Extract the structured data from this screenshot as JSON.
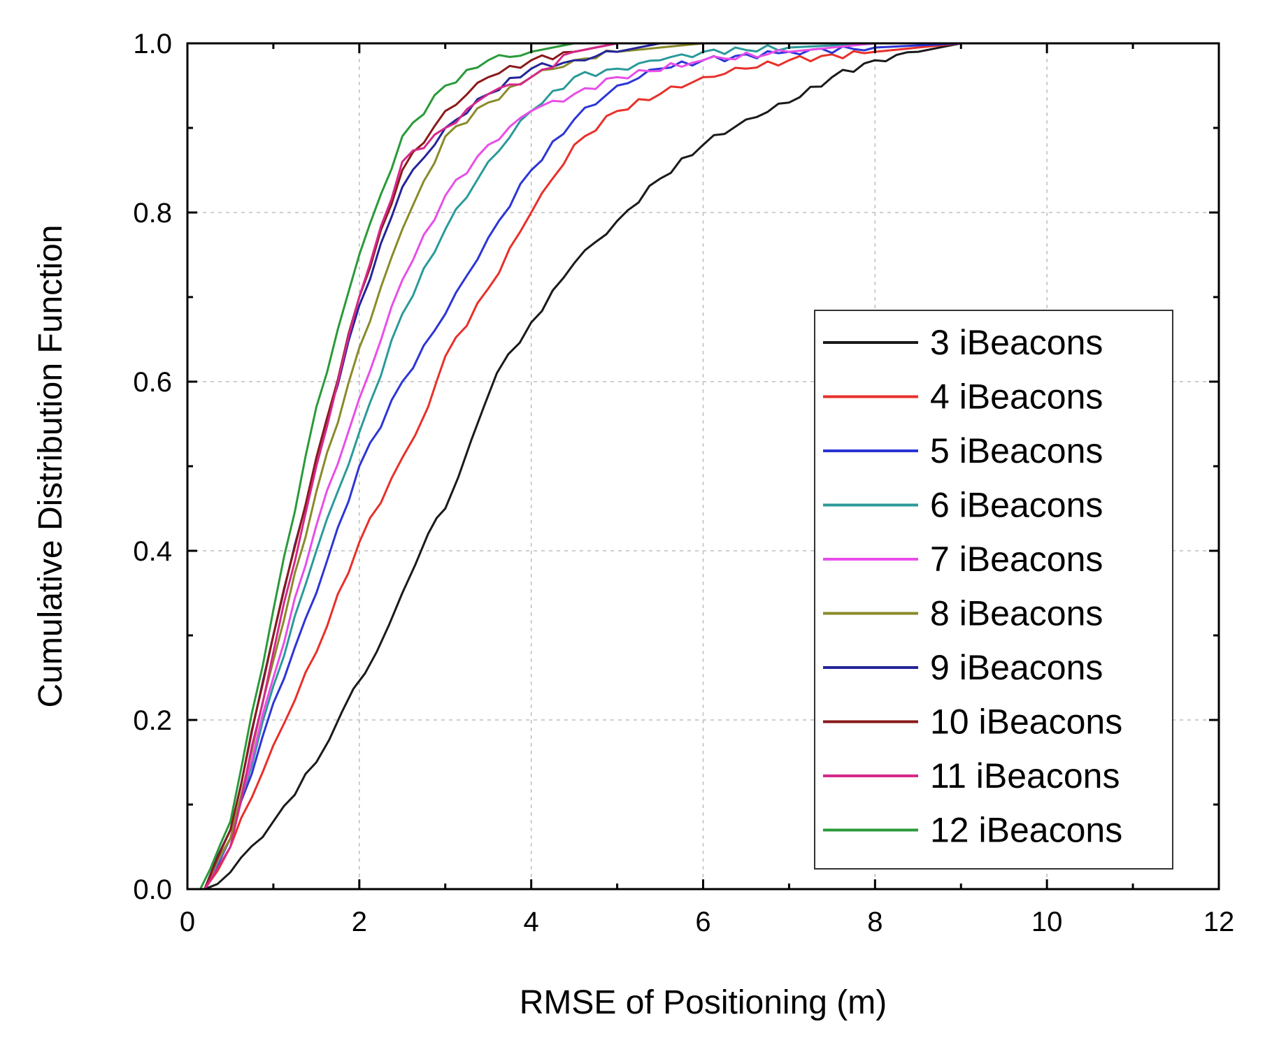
{
  "chart_data": {
    "type": "line",
    "title": "",
    "xlabel": "RMSE of Positioning (m)",
    "ylabel": "Cumulative Distribution Function",
    "xlim": [
      0,
      12
    ],
    "ylim": [
      0,
      1.0
    ],
    "xticks": [
      0,
      2,
      4,
      6,
      8,
      10,
      12
    ],
    "xtick_labels": [
      "0",
      "2",
      "4",
      "6",
      "8",
      "10",
      "12"
    ],
    "yticks": [
      0.0,
      0.2,
      0.4,
      0.6,
      0.8,
      1.0
    ],
    "ytick_labels": [
      "0.0",
      "0.2",
      "0.4",
      "0.6",
      "0.8",
      "1.0"
    ],
    "grid": true,
    "legend_position": "bottom-right",
    "series": [
      {
        "name": "3 iBeacons",
        "color": "#1a1a1a",
        "points": [
          [
            0.2,
            0
          ],
          [
            0.5,
            0.02
          ],
          [
            1.0,
            0.08
          ],
          [
            1.5,
            0.15
          ],
          [
            1.8,
            0.21
          ],
          [
            2.2,
            0.28
          ],
          [
            2.5,
            0.35
          ],
          [
            2.8,
            0.42
          ],
          [
            3.0,
            0.45
          ],
          [
            3.3,
            0.53
          ],
          [
            3.6,
            0.61
          ],
          [
            4.0,
            0.67
          ],
          [
            4.5,
            0.74
          ],
          [
            5.0,
            0.79
          ],
          [
            5.5,
            0.84
          ],
          [
            6.0,
            0.88
          ],
          [
            6.5,
            0.91
          ],
          [
            7.0,
            0.93
          ],
          [
            7.5,
            0.96
          ],
          [
            8.0,
            0.98
          ],
          [
            8.5,
            0.99
          ],
          [
            9.0,
            1.0
          ],
          [
            12.0,
            1.0
          ]
        ]
      },
      {
        "name": "4 iBeacons",
        "color": "#e8302a",
        "points": [
          [
            0.2,
            0
          ],
          [
            0.5,
            0.05
          ],
          [
            1.0,
            0.17
          ],
          [
            1.5,
            0.28
          ],
          [
            2.0,
            0.41
          ],
          [
            2.5,
            0.51
          ],
          [
            2.8,
            0.57
          ],
          [
            3.0,
            0.63
          ],
          [
            3.5,
            0.71
          ],
          [
            4.0,
            0.8
          ],
          [
            4.5,
            0.88
          ],
          [
            5.0,
            0.92
          ],
          [
            5.5,
            0.94
          ],
          [
            6.0,
            0.96
          ],
          [
            6.5,
            0.97
          ],
          [
            7.0,
            0.98
          ],
          [
            8.0,
            0.99
          ],
          [
            9.0,
            1.0
          ],
          [
            12.0,
            1.0
          ]
        ]
      },
      {
        "name": "5 iBeacons",
        "color": "#2c35d6",
        "points": [
          [
            0.2,
            0
          ],
          [
            0.5,
            0.06
          ],
          [
            1.0,
            0.22
          ],
          [
            1.5,
            0.35
          ],
          [
            2.0,
            0.5
          ],
          [
            2.5,
            0.6
          ],
          [
            3.0,
            0.68
          ],
          [
            3.5,
            0.77
          ],
          [
            4.0,
            0.85
          ],
          [
            4.5,
            0.91
          ],
          [
            5.0,
            0.95
          ],
          [
            5.5,
            0.97
          ],
          [
            6.0,
            0.98
          ],
          [
            7.0,
            0.99
          ],
          [
            8.0,
            0.995
          ],
          [
            9.0,
            1.0
          ],
          [
            12.0,
            1.0
          ]
        ]
      },
      {
        "name": "6 iBeacons",
        "color": "#2a9a9a",
        "points": [
          [
            0.2,
            0
          ],
          [
            0.5,
            0.06
          ],
          [
            1.0,
            0.24
          ],
          [
            1.5,
            0.4
          ],
          [
            2.0,
            0.54
          ],
          [
            2.5,
            0.68
          ],
          [
            3.0,
            0.78
          ],
          [
            3.5,
            0.86
          ],
          [
            4.0,
            0.92
          ],
          [
            4.5,
            0.96
          ],
          [
            5.0,
            0.97
          ],
          [
            5.5,
            0.98
          ],
          [
            6.0,
            0.99
          ],
          [
            7.0,
            0.995
          ],
          [
            8.0,
            1.0
          ],
          [
            12.0,
            1.0
          ]
        ]
      },
      {
        "name": "7 iBeacons",
        "color": "#e84ee8",
        "points": [
          [
            0.2,
            0
          ],
          [
            0.5,
            0.06
          ],
          [
            1.0,
            0.25
          ],
          [
            1.5,
            0.43
          ],
          [
            2.0,
            0.58
          ],
          [
            2.5,
            0.72
          ],
          [
            3.0,
            0.82
          ],
          [
            3.5,
            0.88
          ],
          [
            4.0,
            0.92
          ],
          [
            4.5,
            0.94
          ],
          [
            5.0,
            0.96
          ],
          [
            6.0,
            0.98
          ],
          [
            7.0,
            0.99
          ],
          [
            8.0,
            1.0
          ],
          [
            12.0,
            1.0
          ]
        ]
      },
      {
        "name": "8 iBeacons",
        "color": "#8a8a2a",
        "points": [
          [
            0.2,
            0
          ],
          [
            0.5,
            0.06
          ],
          [
            1.0,
            0.27
          ],
          [
            1.5,
            0.47
          ],
          [
            2.0,
            0.64
          ],
          [
            2.5,
            0.78
          ],
          [
            3.0,
            0.89
          ],
          [
            3.5,
            0.93
          ],
          [
            4.0,
            0.96
          ],
          [
            4.5,
            0.98
          ],
          [
            5.0,
            0.99
          ],
          [
            6.0,
            1.0
          ],
          [
            12.0,
            1.0
          ]
        ]
      },
      {
        "name": "9 iBeacons",
        "color": "#24249a",
        "points": [
          [
            0.2,
            0
          ],
          [
            0.5,
            0.07
          ],
          [
            1.0,
            0.3
          ],
          [
            1.5,
            0.51
          ],
          [
            2.0,
            0.69
          ],
          [
            2.5,
            0.83
          ],
          [
            3.0,
            0.9
          ],
          [
            3.5,
            0.94
          ],
          [
            4.0,
            0.97
          ],
          [
            4.5,
            0.98
          ],
          [
            5.0,
            0.99
          ],
          [
            5.5,
            1.0
          ],
          [
            12.0,
            1.0
          ]
        ]
      },
      {
        "name": "10 iBeacons",
        "color": "#8a1a1a",
        "points": [
          [
            0.2,
            0
          ],
          [
            0.5,
            0.07
          ],
          [
            1.0,
            0.3
          ],
          [
            1.5,
            0.51
          ],
          [
            2.0,
            0.7
          ],
          [
            2.5,
            0.85
          ],
          [
            3.0,
            0.92
          ],
          [
            3.5,
            0.96
          ],
          [
            4.0,
            0.98
          ],
          [
            4.5,
            0.99
          ],
          [
            5.0,
            1.0
          ],
          [
            12.0,
            1.0
          ]
        ]
      },
      {
        "name": "11 iBeacons",
        "color": "#d6288a",
        "points": [
          [
            0.2,
            0
          ],
          [
            0.5,
            0.05
          ],
          [
            1.0,
            0.28
          ],
          [
            1.5,
            0.5
          ],
          [
            2.0,
            0.7
          ],
          [
            2.5,
            0.86
          ],
          [
            3.0,
            0.9
          ],
          [
            3.5,
            0.94
          ],
          [
            4.0,
            0.96
          ],
          [
            4.5,
            0.99
          ],
          [
            5.0,
            1.0
          ],
          [
            12.0,
            1.0
          ]
        ]
      },
      {
        "name": "12 iBeacons",
        "color": "#2a9a3a",
        "points": [
          [
            0.15,
            0
          ],
          [
            0.5,
            0.08
          ],
          [
            1.0,
            0.33
          ],
          [
            1.5,
            0.57
          ],
          [
            2.0,
            0.75
          ],
          [
            2.5,
            0.89
          ],
          [
            3.0,
            0.95
          ],
          [
            3.5,
            0.98
          ],
          [
            4.0,
            0.99
          ],
          [
            4.5,
            1.0
          ],
          [
            12.0,
            1.0
          ]
        ]
      }
    ]
  }
}
